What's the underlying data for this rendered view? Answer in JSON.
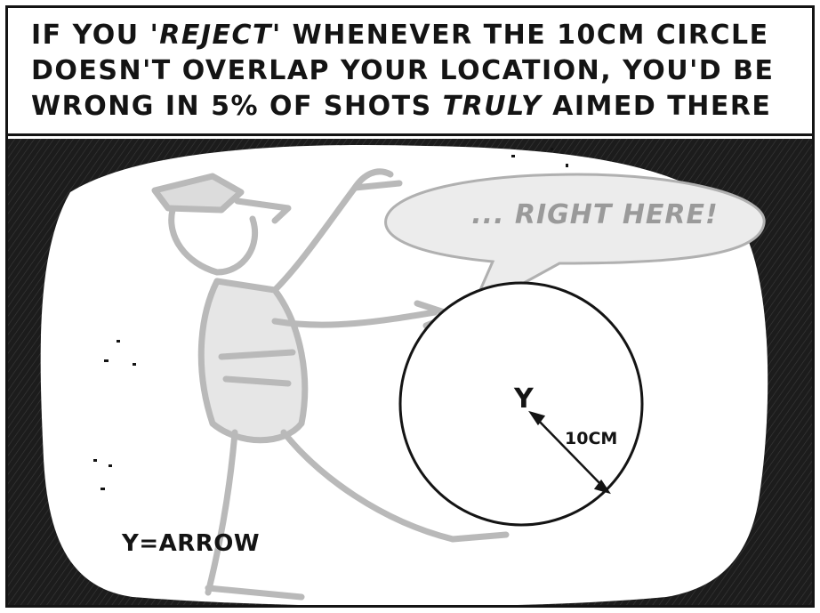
{
  "caption": {
    "line1_a": "IF YOU ",
    "line1_em": "'REJECT'",
    "line1_b": " WHENEVER THE 10CM CIRCLE",
    "line2": "DOESN'T OVERLAP YOUR LOCATION, YOU'D BE",
    "line3_a": "WRONG IN 5% OF SHOTS ",
    "line3_em": "TRULY",
    "line3_b": " AIMED THERE"
  },
  "speech_bubble": {
    "text": "... RIGHT HERE!"
  },
  "target": {
    "arrow_glyph": "Y",
    "radius_label": "10CM"
  },
  "legend": {
    "text": "Y=ARROW"
  },
  "colors": {
    "ink": "#141414",
    "figure_gray": "#b9b9b9",
    "bubble_fill": "#ececec",
    "bubble_text": "#9a9a9a"
  },
  "icons": [
    "speech-bubble",
    "man-figure",
    "target-circle",
    "arrow-mark",
    "radius-arrow"
  ]
}
